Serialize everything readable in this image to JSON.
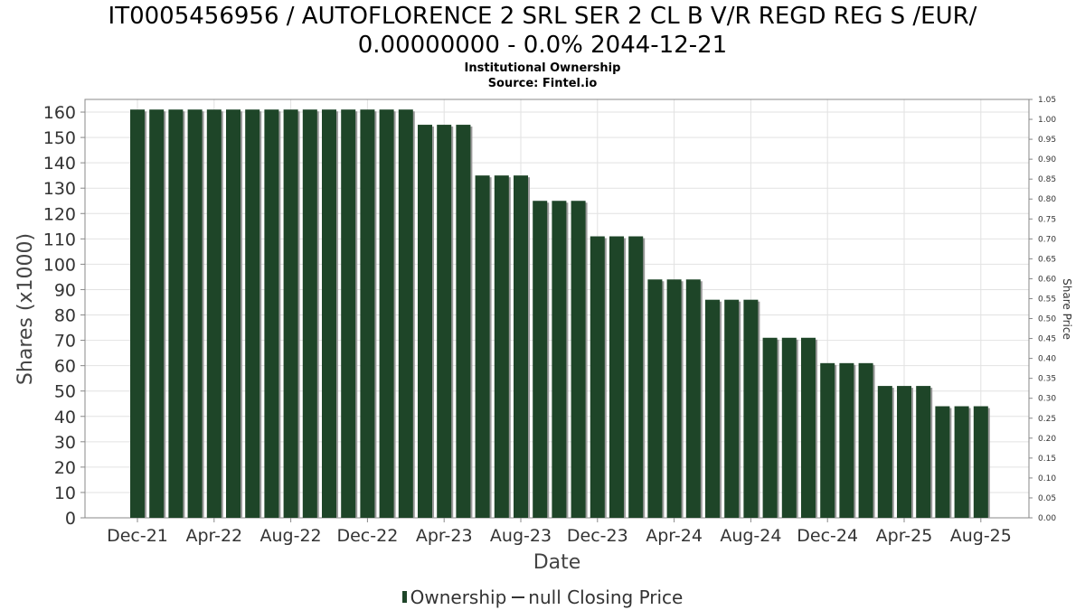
{
  "header": {
    "title_line1": "IT0005456956 / AUTOFLORENCE 2 SRL SER 2 CL B V/R REGD REG S /EUR/",
    "title_line2": "0.00000000 - 0.0% 2044-12-21",
    "subtitle": "Institutional Ownership",
    "source": "Source: Fintel.io"
  },
  "legend": {
    "ownership": "Ownership",
    "price": "null Closing Price"
  },
  "colors": {
    "bar": "#1e4528",
    "bar_shadow": "#9a9a9a",
    "grid": "#e2e2e2",
    "axis": "#888888"
  },
  "chart_data": {
    "type": "bar",
    "xlabel": "Date",
    "ylabel": "Shares (x1000)",
    "y2label": "Share Price",
    "ylim": [
      0,
      165
    ],
    "y2lim": [
      0,
      1.05
    ],
    "y_ticks": [
      0,
      10,
      20,
      30,
      40,
      50,
      60,
      70,
      80,
      90,
      100,
      110,
      120,
      130,
      140,
      150,
      160
    ],
    "y2_ticks": [
      "0.00",
      "0.05",
      "0.10",
      "0.15",
      "0.20",
      "0.25",
      "0.30",
      "0.35",
      "0.40",
      "0.45",
      "0.50",
      "0.55",
      "0.60",
      "0.65",
      "0.70",
      "0.75",
      "0.80",
      "0.85",
      "0.90",
      "0.95",
      "1.00",
      "1.05"
    ],
    "x_ticks": [
      "Dec-21",
      "Apr-22",
      "Aug-22",
      "Dec-22",
      "Apr-23",
      "Aug-23",
      "Dec-23",
      "Apr-24",
      "Aug-24",
      "Dec-24",
      "Apr-25",
      "Aug-25"
    ],
    "grid": true,
    "legend_position": "bottom",
    "series": [
      {
        "name": "Ownership",
        "values": [
          161,
          161,
          161,
          161,
          161,
          161,
          161,
          161,
          161,
          161,
          161,
          161,
          161,
          161,
          161,
          155,
          155,
          155,
          135,
          135,
          135,
          125,
          125,
          125,
          111,
          111,
          111,
          94,
          94,
          94,
          86,
          86,
          86,
          71,
          71,
          71,
          61,
          61,
          61,
          52,
          52,
          52,
          44,
          44,
          44
        ]
      }
    ]
  }
}
